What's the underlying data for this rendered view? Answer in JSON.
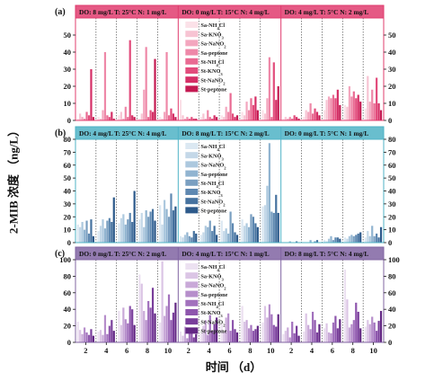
{
  "y_label": "2-MIB 浓度 （ng/L）",
  "x_label": "时间 （d）",
  "legend_labels": [
    "Sa-NH4Cl",
    "Sa-KNO3",
    "Sa-NaNO2",
    "Sa-peptone",
    "St-NH4Cl",
    "St-KNO3",
    "St-NaNO2",
    "St-peptone"
  ],
  "chart_data": {
    "type": "bar",
    "x_ticks": [
      2,
      4,
      6,
      8,
      10
    ],
    "series_names": [
      "Sa-NH4Cl",
      "Sa-KNO3",
      "Sa-NaNO2",
      "Sa-peptone",
      "St-NH4Cl",
      "St-KNO3",
      "St-NaNO2",
      "St-peptone"
    ],
    "rows": [
      {
        "label": "(a)",
        "color": "#e03c6e",
        "ylim": [
          0,
          60
        ],
        "yticks": [
          0,
          10,
          20,
          30,
          40,
          50
        ],
        "palette": [
          "#fbe1e8",
          "#f7c4d3",
          "#f3a6be",
          "#ee88a8",
          "#e96a92",
          "#e24c7c",
          "#d52f66",
          "#c41a52"
        ],
        "panels": [
          {
            "header": "DO: 8 mg/L  T: 25°C  N: 1 mg/L",
            "legend": false,
            "days": [
              [
                1,
                4,
                2,
                1,
                5,
                3,
                30,
                2
              ],
              [
                2,
                1,
                6,
                40,
                3,
                2,
                5,
                1
              ],
              [
                3,
                5,
                1,
                8,
                2,
                47,
                3,
                2
              ],
              [
                1,
                4,
                18,
                43,
                2,
                6,
                5,
                36
              ],
              [
                2,
                1,
                5,
                40,
                3,
                7,
                4,
                2
              ]
            ]
          },
          {
            "header": "DO: 0 mg/L  T: 15°C  N: 4 mg/L",
            "legend": true,
            "days": [
              [
                12,
                3,
                1,
                2,
                1,
                2,
                1,
                1
              ],
              [
                2,
                4,
                1,
                6,
                2,
                1,
                3,
                2
              ],
              [
                3,
                2,
                8,
                5,
                16,
                4,
                2,
                3
              ],
              [
                5,
                3,
                11,
                6,
                13,
                9,
                14,
                6
              ],
              [
                6,
                4,
                13,
                37,
                2,
                34,
                12,
                20
              ]
            ]
          },
          {
            "header": "DO: 4 mg/L  T: 5°C  N: 2 mg/L",
            "legend": false,
            "days": [
              [
                1,
                2,
                1,
                2,
                1,
                3,
                2,
                1
              ],
              [
                2,
                6,
                5,
                10,
                4,
                7,
                5,
                3
              ],
              [
                6,
                12,
                14,
                13,
                15,
                13,
                18,
                9
              ],
              [
                9,
                8,
                20,
                14,
                17,
                13,
                15,
                11
              ],
              [
                7,
                26,
                11,
                18,
                10,
                25,
                10,
                6
              ]
            ]
          }
        ]
      },
      {
        "label": "(b)",
        "color": "#4fb3c6",
        "ylim": [
          0,
          80
        ],
        "yticks": [
          0,
          10,
          20,
          30,
          40,
          50,
          60,
          70,
          80
        ],
        "palette": [
          "#dbe8f2",
          "#c4d8e8",
          "#acc8de",
          "#91b4d0",
          "#7a9fc1",
          "#5e88b1",
          "#46729f",
          "#2d5a8b"
        ],
        "panels": [
          {
            "header": "DO: 4 mg/L  T: 25°C  N: 4 mg/L",
            "legend": false,
            "days": [
              [
                14,
                12,
                16,
                10,
                17,
                7,
                18,
                5
              ],
              [
                9,
                13,
                18,
                11,
                17,
                19,
                16,
                35
              ],
              [
                15,
                19,
                22,
                14,
                18,
                23,
                16,
                40
              ],
              [
                18,
                23,
                12,
                25,
                20,
                24,
                26,
                17
              ],
              [
                29,
                14,
                33,
                26,
                20,
                38,
                25,
                28
              ]
            ]
          },
          {
            "header": "DO: 8 mg/L  T: 15°C  N: 2 mg/L",
            "legend": true,
            "days": [
              [
                5,
                4,
                6,
                8,
                5,
                4,
                9,
                7
              ],
              [
                6,
                8,
                13,
                12,
                17,
                9,
                13,
                6
              ],
              [
                17,
                9,
                11,
                7,
                24,
                15,
                8,
                6
              ],
              [
                18,
                13,
                15,
                12,
                22,
                20,
                15,
                12
              ],
              [
                28,
                29,
                44,
                77,
                24,
                23,
                37,
                23
              ]
            ]
          },
          {
            "header": "DO: 0 mg/L  T: 5°C  N: 1 mg/L",
            "legend": false,
            "days": [
              [
                0,
                0,
                0,
                1,
                0,
                0,
                1,
                0
              ],
              [
                0,
                0,
                0,
                2,
                0,
                1,
                2,
                0
              ],
              [
                2,
                1,
                3,
                5,
                2,
                4,
                4,
                3
              ],
              [
                4,
                3,
                5,
                6,
                5,
                6,
                7,
                8
              ],
              [
                4,
                9,
                5,
                13,
                5,
                7,
                4,
                12
              ]
            ]
          }
        ]
      },
      {
        "label": "(c)",
        "color": "#8064a2",
        "ylim": [
          0,
          100
        ],
        "yticks": [
          0,
          20,
          40,
          60,
          80,
          100
        ],
        "palette": [
          "#ece1f1",
          "#dbc5e5",
          "#c9a9d8",
          "#b68ecb",
          "#a271bd",
          "#8e56ad",
          "#793e9b",
          "#632884"
        ],
        "panels": [
          {
            "header": "DO: 0 mg/L  T: 25°C  N: 2 mg/L",
            "legend": false,
            "days": [
              [
                25,
                15,
                10,
                18,
                12,
                9,
                16,
                8
              ],
              [
                13,
                15,
                9,
                33,
                10,
                20,
                27,
                14
              ],
              [
                38,
                21,
                42,
                28,
                23,
                44,
                40,
                21
              ],
              [
                82,
                71,
                38,
                27,
                50,
                42,
                66,
                35
              ],
              [
                24,
                98,
                32,
                44,
                58,
                27,
                36,
                48
              ]
            ]
          },
          {
            "header": "DO: 4 mg/L  T: 15°C  N: 1 mg/L",
            "legend": true,
            "days": [
              [
                13,
                8,
                19,
                5,
                11,
                16,
                6,
                10
              ],
              [
                11,
                20,
                27,
                9,
                33,
                14,
                22,
                30
              ],
              [
                22,
                12,
                30,
                35,
                14,
                27,
                16,
                12
              ],
              [
                44,
                25,
                27,
                17,
                21,
                14,
                16,
                20
              ],
              [
                24,
                44,
                30,
                46,
                34,
                21,
                19,
                34
              ]
            ]
          },
          {
            "header": "DO: 8 mg/L  T: 5°C  N: 4 mg/L",
            "legend": false,
            "days": [
              [
                10,
                14,
                18,
                6,
                25,
                11,
                20,
                8
              ],
              [
                13,
                35,
                21,
                16,
                37,
                27,
                12,
                22
              ],
              [
                17,
                23,
                12,
                11,
                24,
                32,
                17,
                28
              ],
              [
                88,
                52,
                18,
                22,
                27,
                48,
                37,
                17
              ],
              [
                19,
                27,
                22,
                31,
                24,
                14,
                26,
                38
              ]
            ]
          }
        ]
      }
    ]
  }
}
